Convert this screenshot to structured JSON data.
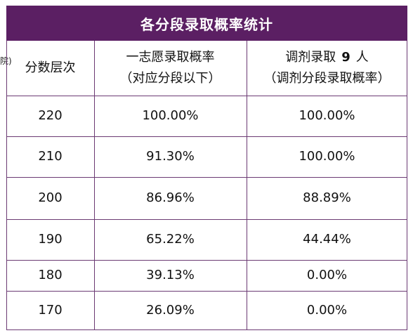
{
  "title": "各分段录取概率统计",
  "side_fragment": "院)",
  "header": {
    "col1": "分数层次",
    "col2_line1": "一志愿录取概率",
    "col2_line2": "（对应分段以下）",
    "col3_prefix": "调剂录取",
    "col3_number": "9",
    "col3_suffix": "人",
    "col3_line2": "（调剂分段录取概率）"
  },
  "rows": [
    {
      "score": "220",
      "first_choice": "100.00%",
      "adjust": "100.00%"
    },
    {
      "score": "210",
      "first_choice": "91.30%",
      "adjust": "100.00%"
    },
    {
      "score": "200",
      "first_choice": "86.96%",
      "adjust": "88.89%"
    },
    {
      "score": "190",
      "first_choice": "65.22%",
      "adjust": "44.44%"
    },
    {
      "score": "180",
      "first_choice": "39.13%",
      "adjust": "0.00%"
    },
    {
      "score": "170",
      "first_choice": "26.09%",
      "adjust": "0.00%"
    }
  ],
  "colors": {
    "title_bg": "#5b1f63",
    "grid_line": "#6b3a73"
  }
}
